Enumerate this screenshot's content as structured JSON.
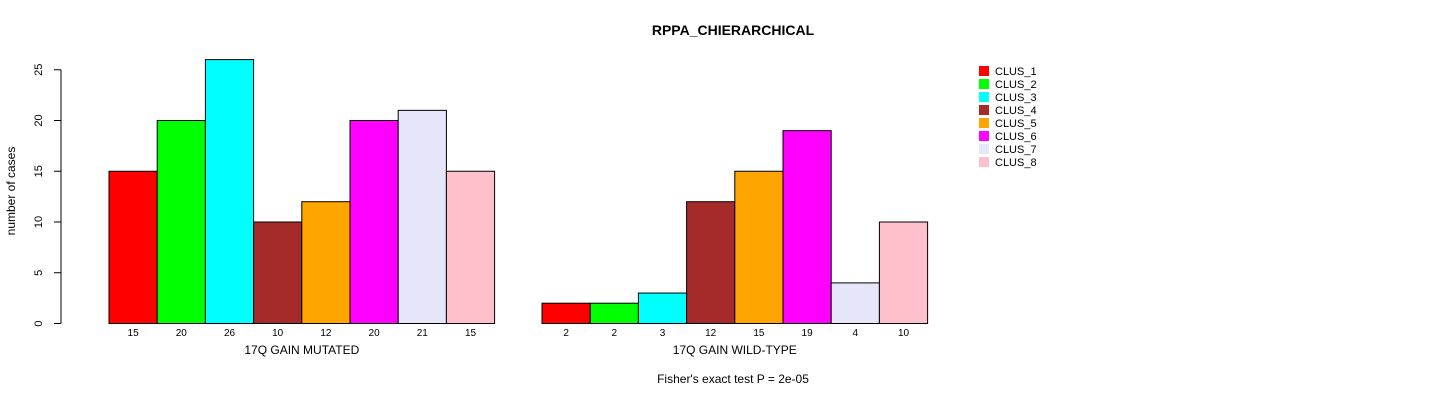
{
  "chart_data": {
    "type": "bar",
    "title": "RPPA_CHIERARCHICAL",
    "ylabel": "number of cases",
    "ylim": [
      0,
      26
    ],
    "yticks": [
      0,
      5,
      10,
      15,
      20,
      25
    ],
    "footnote": "Fisher's exact test P = 2e-05",
    "legend_position": "top-right",
    "groups": [
      {
        "name": "17Q GAIN MUTATED",
        "values": [
          15,
          20,
          26,
          10,
          12,
          20,
          21,
          15
        ]
      },
      {
        "name": "17Q GAIN WILD-TYPE",
        "values": [
          2,
          2,
          3,
          12,
          15,
          19,
          4,
          10
        ]
      }
    ],
    "series": [
      {
        "name": "CLUS_1",
        "color": "#ff0000"
      },
      {
        "name": "CLUS_2",
        "color": "#00ff00"
      },
      {
        "name": "CLUS_3",
        "color": "#00ffff"
      },
      {
        "name": "CLUS_4",
        "color": "#a52a2a"
      },
      {
        "name": "CLUS_5",
        "color": "#ffa500"
      },
      {
        "name": "CLUS_6",
        "color": "#ff00ff"
      },
      {
        "name": "CLUS_7",
        "color": "#e6e6fa"
      },
      {
        "name": "CLUS_8",
        "color": "#ffc0cb"
      }
    ]
  }
}
